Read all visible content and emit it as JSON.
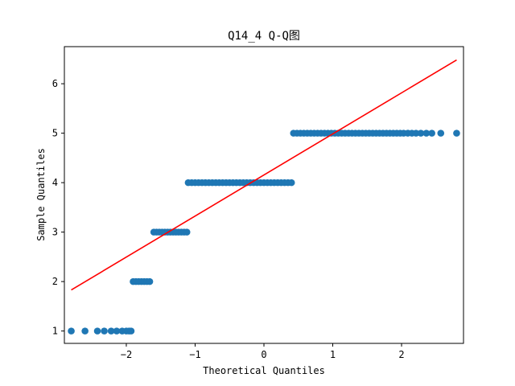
{
  "chart_data": {
    "type": "scatter",
    "title": "Q14_4 Q-Q图",
    "xlabel": "Theoretical Quantiles",
    "ylabel": "Sample Quantiles",
    "xlim": [
      -2.9,
      2.9
    ],
    "ylim": [
      0.75,
      6.75
    ],
    "x_ticks": [
      -2,
      -1,
      0,
      1,
      2
    ],
    "y_ticks": [
      1,
      2,
      3,
      4,
      5,
      6
    ],
    "grid": false,
    "legend": "none",
    "point_color": "#1f77b4",
    "line_color": "#ff0000",
    "reference_line": {
      "x": [
        -2.8,
        2.8
      ],
      "y": [
        1.83,
        6.48
      ]
    },
    "series": [
      {
        "x": [
          -2.8,
          -2.6,
          -2.42,
          -2.32,
          -2.22,
          -2.14,
          -2.06,
          -2.0,
          -1.96,
          -1.93
        ],
        "y": [
          1,
          1,
          1,
          1,
          1,
          1,
          1,
          1,
          1,
          1
        ]
      },
      {
        "x": [
          -1.9,
          -1.86,
          -1.82,
          -1.78,
          -1.74,
          -1.7,
          -1.66
        ],
        "y": [
          2,
          2,
          2,
          2,
          2,
          2,
          2
        ]
      },
      {
        "x": [
          -1.6,
          -1.56,
          -1.52,
          -1.48,
          -1.44,
          -1.4,
          -1.36,
          -1.32,
          -1.28,
          -1.24,
          -1.2,
          -1.16,
          -1.12
        ],
        "y": [
          3,
          3,
          3,
          3,
          3,
          3,
          3,
          3,
          3,
          3,
          3,
          3,
          3
        ]
      },
      {
        "x": [
          -1.1,
          -1.05,
          -1.0,
          -0.95,
          -0.9,
          -0.85,
          -0.8,
          -0.75,
          -0.7,
          -0.65,
          -0.6,
          -0.55,
          -0.5,
          -0.45,
          -0.4,
          -0.35,
          -0.3,
          -0.25,
          -0.2,
          -0.15,
          -0.1,
          -0.05,
          0.0,
          0.05,
          0.1,
          0.15,
          0.2,
          0.25,
          0.3,
          0.35,
          0.4
        ],
        "y": [
          4,
          4,
          4,
          4,
          4,
          4,
          4,
          4,
          4,
          4,
          4,
          4,
          4,
          4,
          4,
          4,
          4,
          4,
          4,
          4,
          4,
          4,
          4,
          4,
          4,
          4,
          4,
          4,
          4,
          4,
          4
        ]
      },
      {
        "x": [
          0.43,
          0.48,
          0.53,
          0.58,
          0.63,
          0.68,
          0.73,
          0.78,
          0.83,
          0.88,
          0.93,
          0.98,
          1.03,
          1.08,
          1.13,
          1.18,
          1.23,
          1.28,
          1.33,
          1.38,
          1.43,
          1.48,
          1.53,
          1.58,
          1.63,
          1.68,
          1.73,
          1.78,
          1.83,
          1.88,
          1.93,
          1.98,
          2.03,
          2.09,
          2.15,
          2.21,
          2.28,
          2.36,
          2.44,
          2.57,
          2.8
        ],
        "y": [
          5,
          5,
          5,
          5,
          5,
          5,
          5,
          5,
          5,
          5,
          5,
          5,
          5,
          5,
          5,
          5,
          5,
          5,
          5,
          5,
          5,
          5,
          5,
          5,
          5,
          5,
          5,
          5,
          5,
          5,
          5,
          5,
          5,
          5,
          5,
          5,
          5,
          5,
          5,
          5,
          5
        ]
      }
    ]
  }
}
